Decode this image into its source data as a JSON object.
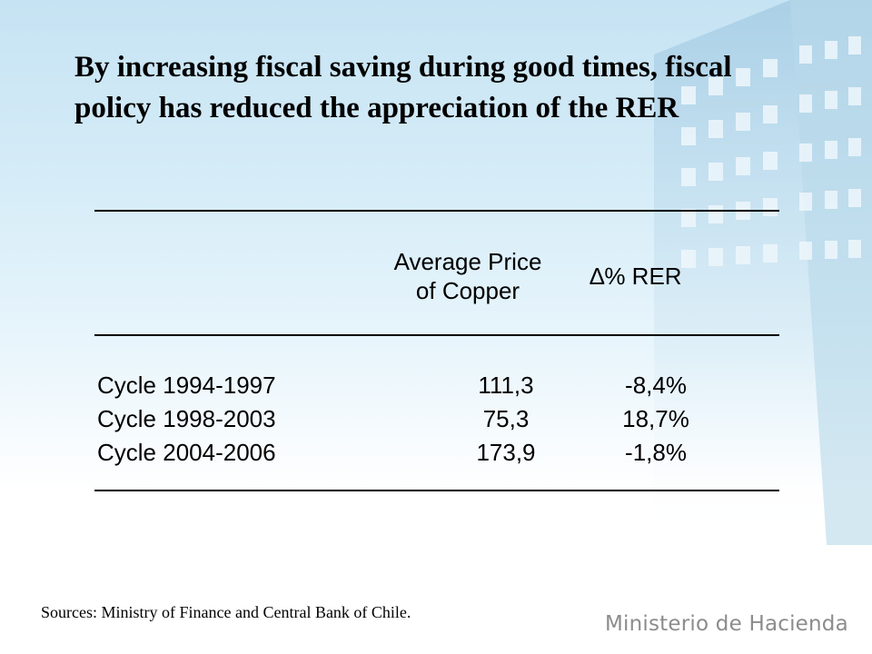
{
  "slide": {
    "title": "By increasing fiscal saving during good times, fiscal policy has reduced the appreciation of the RER",
    "table": {
      "headers": {
        "price_line1": "Average Price",
        "price_line2": "of Copper",
        "rer": "∆% RER"
      },
      "rows": [
        {
          "label": "Cycle 1994-1997",
          "price": "111,3",
          "rer": "-8,4%"
        },
        {
          "label": "Cycle 1998-2003",
          "price": "75,3",
          "rer": "18,7%"
        },
        {
          "label": "Cycle 2004-2006",
          "price": "173,9",
          "rer": "-1,8%"
        }
      ]
    },
    "sources": "Sources: Ministry of Finance and Central Bank of Chile.",
    "brand": "Ministerio de Hacienda"
  }
}
